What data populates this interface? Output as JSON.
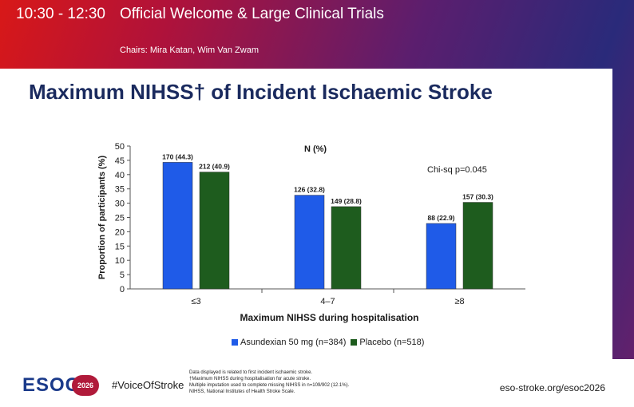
{
  "header": {
    "time": "10:30 - 12:30",
    "title": "Official Welcome & Large Clinical Trials",
    "chairs": "Chairs: Mira Katan, Wim Van Zwam"
  },
  "slide": {
    "title": "Maximum NIHSS† of Incident Ischaemic Stroke"
  },
  "chart_data": {
    "type": "bar",
    "title": "N (%)",
    "annotation": "Chi-sq p=0.045",
    "xlabel": "Maximum NIHSS during hospitalisation",
    "ylabel": "Proportion of participants (%)",
    "ylim": [
      0,
      50
    ],
    "yticks": [
      0,
      5,
      10,
      15,
      20,
      25,
      30,
      35,
      40,
      45,
      50
    ],
    "categories": [
      "≤3",
      "4–7",
      "≥8"
    ],
    "series": [
      {
        "name": "Asundexian 50 mg (n=384)",
        "color": "#1f5be8",
        "values": [
          44.3,
          32.8,
          22.9
        ],
        "labels": [
          "170 (44.3)",
          "126 (32.8)",
          "88 (22.9)"
        ]
      },
      {
        "name": "Placebo (n=518)",
        "color": "#1e5c1e",
        "values": [
          40.9,
          28.8,
          30.3
        ],
        "labels": [
          "212 (40.9)",
          "149 (28.8)",
          "157 (30.3)"
        ]
      }
    ],
    "grid": false,
    "legend_position": "bottom"
  },
  "footer": {
    "logo": "ESOC",
    "badge": "2026",
    "hashtag": "#VoiceOfStroke",
    "notes": [
      "Data displayed is related to first incident ischaemic stroke.",
      "†Maximum NIHSS during hospitalisation for acute stroke.",
      "Multiple imputation used to complete missing NIHSS in n=109/902 (12.1%).",
      "NIHSS, National Institutes of Health Stroke Scale."
    ],
    "website": "eso-stroke.org/esoc2026"
  }
}
